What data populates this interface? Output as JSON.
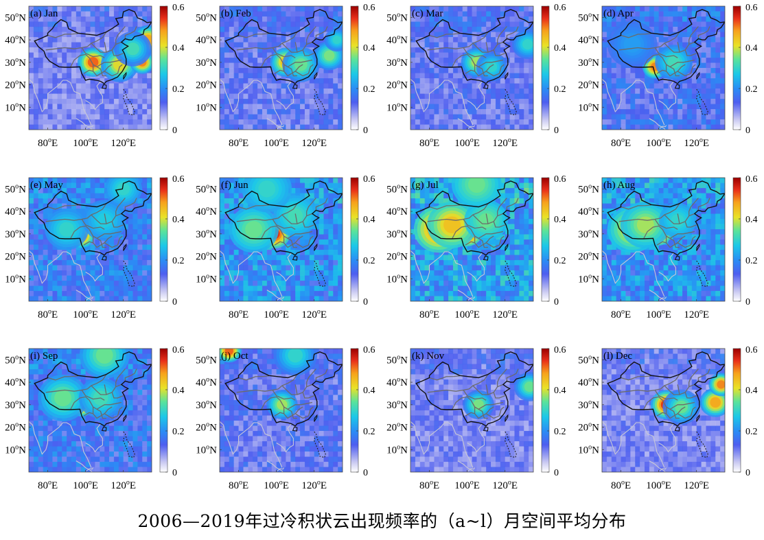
{
  "chart_data": {
    "type": "heatmap",
    "title": "2006—2019年过冷积状云出现频率的（a~l）月空间平均分布",
    "variable": "过冷积状云出现频率",
    "period": "2006—2019",
    "colorbar": {
      "range": [
        0,
        0.6
      ],
      "ticks": [
        0,
        0.2,
        0.4,
        0.6
      ],
      "tick_labels": [
        "0",
        "0.2",
        "0.4",
        "0.6"
      ],
      "colormap": "jet-like (white to blue to cyan to yellow to red to dark red)"
    },
    "x_axis": {
      "ticks": [
        80,
        100,
        120
      ],
      "tick_labels": [
        "80°E",
        "100°E",
        "120°E"
      ],
      "range": [
        70,
        135
      ]
    },
    "y_axis": {
      "ticks": [
        10,
        20,
        30,
        40,
        50
      ],
      "tick_labels": [
        "10°N",
        "20°N",
        "30°N",
        "40°N",
        "50°N"
      ],
      "range": [
        0,
        55
      ]
    },
    "panels": [
      {
        "label": "(a) Jan",
        "month": "Jan",
        "background": 0.1,
        "hotspots": [
          {
            "lon": 104,
            "lat": 30,
            "value": 0.52,
            "r": 5
          },
          {
            "lon": 118,
            "lat": 29,
            "value": 0.42,
            "r": 6
          },
          {
            "lon": 130,
            "lat": 30,
            "value": 0.5,
            "r": 4
          },
          {
            "lon": 133,
            "lat": 40,
            "value": 0.48,
            "r": 5
          },
          {
            "lon": 125,
            "lat": 36,
            "value": 0.32,
            "r": 6
          }
        ]
      },
      {
        "label": "(b) Feb",
        "month": "Feb",
        "background": 0.12,
        "hotspots": [
          {
            "lon": 105,
            "lat": 30,
            "value": 0.45,
            "r": 5
          },
          {
            "lon": 113,
            "lat": 29,
            "value": 0.35,
            "r": 6
          },
          {
            "lon": 128,
            "lat": 33,
            "value": 0.36,
            "r": 5
          },
          {
            "lon": 132,
            "lat": 40,
            "value": 0.3,
            "r": 4
          }
        ]
      },
      {
        "label": "(c) Mar",
        "month": "Mar",
        "background": 0.12,
        "hotspots": [
          {
            "lon": 105,
            "lat": 30,
            "value": 0.38,
            "r": 5
          },
          {
            "lon": 113,
            "lat": 28,
            "value": 0.3,
            "r": 5
          },
          {
            "lon": 132,
            "lat": 38,
            "value": 0.3,
            "r": 5
          }
        ]
      },
      {
        "label": "(d) Apr",
        "month": "Apr",
        "background": 0.14,
        "hotspots": [
          {
            "lon": 98,
            "lat": 28,
            "value": 0.5,
            "r": 4
          },
          {
            "lon": 108,
            "lat": 30,
            "value": 0.32,
            "r": 6
          },
          {
            "lon": 86,
            "lat": 38,
            "value": 0.22,
            "r": 8
          }
        ]
      },
      {
        "label": "(e) May",
        "month": "May",
        "background": 0.17,
        "hotspots": [
          {
            "lon": 98,
            "lat": 29,
            "value": 0.5,
            "r": 4
          },
          {
            "lon": 90,
            "lat": 32,
            "value": 0.3,
            "r": 7
          },
          {
            "lon": 110,
            "lat": 36,
            "value": 0.28,
            "r": 7
          },
          {
            "lon": 120,
            "lat": 50,
            "value": 0.3,
            "r": 6
          }
        ]
      },
      {
        "label": "(f) Jun",
        "month": "Jun",
        "background": 0.2,
        "hotspots": [
          {
            "lon": 99,
            "lat": 30,
            "value": 0.55,
            "r": 5
          },
          {
            "lon": 88,
            "lat": 32,
            "value": 0.35,
            "r": 8
          },
          {
            "lon": 110,
            "lat": 38,
            "value": 0.32,
            "r": 7
          },
          {
            "lon": 95,
            "lat": 50,
            "value": 0.3,
            "r": 8
          }
        ]
      },
      {
        "label": "(g) Jul",
        "month": "Jul",
        "background": 0.22,
        "hotspots": [
          {
            "lon": 100,
            "lat": 31,
            "value": 0.58,
            "r": 5
          },
          {
            "lon": 85,
            "lat": 32,
            "value": 0.5,
            "r": 8
          },
          {
            "lon": 92,
            "lat": 34,
            "value": 0.45,
            "r": 8
          },
          {
            "lon": 110,
            "lat": 36,
            "value": 0.35,
            "r": 7
          },
          {
            "lon": 105,
            "lat": 52,
            "value": 0.35,
            "r": 8
          }
        ]
      },
      {
        "label": "(h) Aug",
        "month": "Aug",
        "background": 0.2,
        "hotspots": [
          {
            "lon": 100,
            "lat": 30,
            "value": 0.55,
            "r": 4
          },
          {
            "lon": 86,
            "lat": 32,
            "value": 0.42,
            "r": 8
          },
          {
            "lon": 93,
            "lat": 34,
            "value": 0.38,
            "r": 8
          },
          {
            "lon": 110,
            "lat": 36,
            "value": 0.3,
            "r": 6
          }
        ]
      },
      {
        "label": "(i) Sep",
        "month": "Sep",
        "background": 0.16,
        "hotspots": [
          {
            "lon": 98,
            "lat": 30,
            "value": 0.55,
            "r": 4
          },
          {
            "lon": 88,
            "lat": 33,
            "value": 0.35,
            "r": 8
          },
          {
            "lon": 108,
            "lat": 33,
            "value": 0.32,
            "r": 7
          },
          {
            "lon": 110,
            "lat": 52,
            "value": 0.35,
            "r": 8
          }
        ]
      },
      {
        "label": "(j) Oct",
        "month": "Oct",
        "background": 0.12,
        "hotspots": [
          {
            "lon": 103,
            "lat": 30,
            "value": 0.38,
            "r": 5
          },
          {
            "lon": 75,
            "lat": 54,
            "value": 0.52,
            "r": 4
          },
          {
            "lon": 110,
            "lat": 52,
            "value": 0.3,
            "r": 7
          }
        ]
      },
      {
        "label": "(k) Nov",
        "month": "Nov",
        "background": 0.1,
        "hotspots": [
          {
            "lon": 106,
            "lat": 30,
            "value": 0.36,
            "r": 5
          },
          {
            "lon": 133,
            "lat": 38,
            "value": 0.35,
            "r": 5
          }
        ]
      },
      {
        "label": "(l) Dec",
        "month": "Dec",
        "background": 0.1,
        "hotspots": [
          {
            "lon": 104,
            "lat": 30,
            "value": 0.55,
            "r": 5
          },
          {
            "lon": 112,
            "lat": 29,
            "value": 0.35,
            "r": 6
          },
          {
            "lon": 130,
            "lat": 31,
            "value": 0.48,
            "r": 5
          },
          {
            "lon": 133,
            "lat": 39,
            "value": 0.5,
            "r": 4
          }
        ]
      }
    ]
  },
  "caption": "2006—2019年过冷积状云出现频率的（a~l）月空间平均分布"
}
